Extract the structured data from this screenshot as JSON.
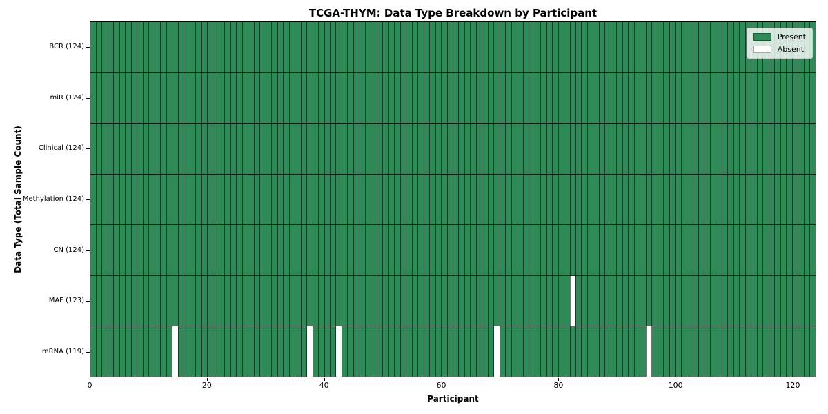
{
  "chart_data": {
    "type": "heatmap",
    "title": "TCGA-THYM: Data Type Breakdown by Participant",
    "xlabel": "Participant",
    "ylabel": "Data Type (Total Sample Count)",
    "n_participants": 124,
    "x_range": [
      0,
      124
    ],
    "x_ticks": [
      0,
      20,
      40,
      60,
      80,
      100,
      120
    ],
    "grid": true,
    "rows_top_to_bottom": [
      {
        "label": "BCR (124)",
        "data_type": "BCR",
        "total_sample_count": 124,
        "absent_participants": []
      },
      {
        "label": "miR (124)",
        "data_type": "miR",
        "total_sample_count": 124,
        "absent_participants": []
      },
      {
        "label": "Clinical (124)",
        "data_type": "Clinical",
        "total_sample_count": 124,
        "absent_participants": []
      },
      {
        "label": "Methylation (124)",
        "data_type": "Methylation",
        "total_sample_count": 124,
        "absent_participants": []
      },
      {
        "label": "CN (124)",
        "data_type": "CN",
        "total_sample_count": 124,
        "absent_participants": []
      },
      {
        "label": "MAF (123)",
        "data_type": "MAF",
        "total_sample_count": 123,
        "absent_participants": [
          82
        ]
      },
      {
        "label": "mRNA (119)",
        "data_type": "mRNA",
        "total_sample_count": 119,
        "absent_participants": [
          14,
          37,
          42,
          69,
          95
        ]
      }
    ],
    "legend": {
      "position": "upper right",
      "entries": [
        {
          "label": "Present",
          "color": "#2e8b57"
        },
        {
          "label": "Absent",
          "color": "#ffffff"
        }
      ]
    },
    "colors": {
      "present": "#2e8b57",
      "absent": "#ffffff",
      "cell_gridline": "rgba(0,0,0,0.55)",
      "row_separator": "rgba(0,0,0,0.85)",
      "frame": "#000000",
      "legend_background": "rgba(255,255,255,0.8)",
      "legend_border": "#cccccc"
    }
  }
}
